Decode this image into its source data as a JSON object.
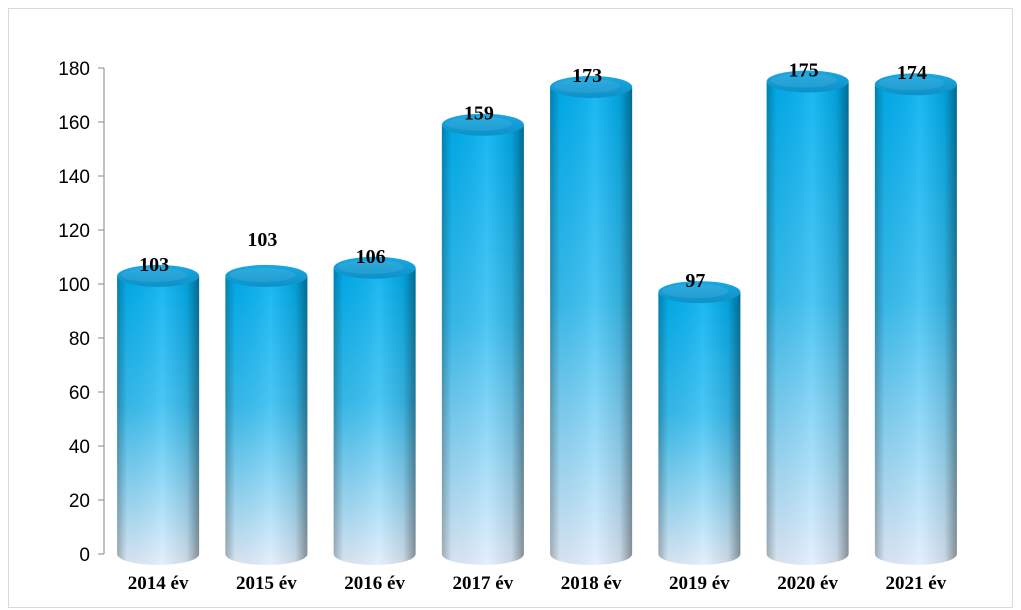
{
  "chart_data": {
    "type": "bar",
    "title": "",
    "xlabel": "",
    "ylabel": "",
    "categories": [
      "2014 év",
      "2015 év",
      "2016 év",
      "2017 év",
      "2018 év",
      "2019 év",
      "2020 év",
      "2021 év"
    ],
    "values": [
      103,
      103,
      106,
      159,
      173,
      97,
      175,
      174
    ],
    "data_labels": [
      "103",
      "103",
      "106",
      "159",
      "173",
      "97",
      "175",
      "174"
    ],
    "ylim": [
      0,
      180
    ],
    "yticks": [
      "0",
      "20",
      "40",
      "60",
      "80",
      "100",
      "120",
      "140",
      "160",
      "180"
    ],
    "grid": false,
    "legend": "none",
    "bar_shape": "3d-cylinder",
    "colors": {
      "top": "#00b0f0",
      "mid": "#33bdf0",
      "bottom": "#dbe8fb",
      "cap": "#1a9fd8",
      "axis": "#868686"
    }
  }
}
